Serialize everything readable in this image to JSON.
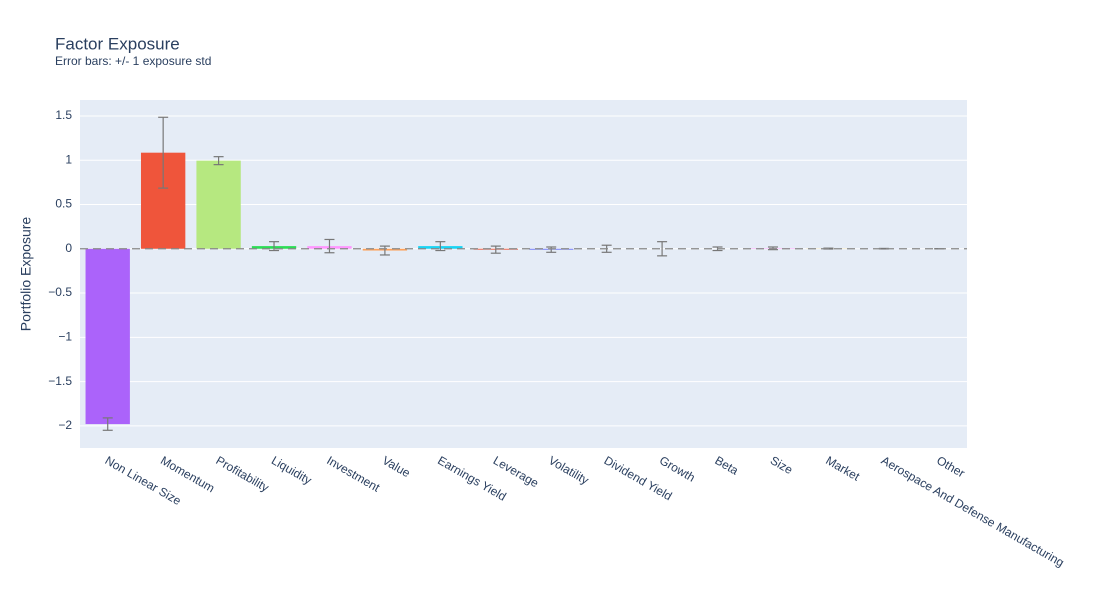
{
  "chart_data": {
    "type": "bar",
    "title": "Factor Exposure",
    "subtitle": "Error bars: +/- 1 exposure std",
    "y_label": "Portfolio Exposure",
    "categories": [
      "Non Linear Size",
      "Momentum",
      "Profitability",
      "Liquidity",
      "Investment",
      "Value",
      "Earnings Yield",
      "Leverage",
      "Volatility",
      "Dividend Yield",
      "Growth",
      "Beta",
      "Size",
      "Market",
      "Aerospace And Defense Manufacturing",
      "Other"
    ],
    "values": [
      -1.98,
      1.085,
      0.995,
      0.03,
      0.03,
      -0.02,
      0.03,
      -0.01,
      -0.01,
      0,
      0,
      0,
      0.005,
      0.002,
      0.001,
      0
    ],
    "errors": [
      0.07,
      0.4,
      0.045,
      0.05,
      0.075,
      0.05,
      0.05,
      0.04,
      0.03,
      0.04,
      0.08,
      0.02,
      0.015,
      0.005,
      0.003,
      0
    ],
    "colors": [
      "#AB63FA",
      "#EF553B",
      "#B6E880",
      "#2CDC55",
      "#FF97FF",
      "#FFA15A",
      "#19D3F3",
      "#EF553B",
      "#636EFA",
      "#00CC96",
      "#FF6692",
      "#B6E880",
      "#FF97FF",
      "#FECB52",
      "#636EFA",
      "#00CC96"
    ],
    "ylim": [
      -2.25,
      1.68
    ],
    "yticks": [
      {
        "value": -2,
        "label": "−2"
      },
      {
        "value": -1.5,
        "label": "−1.5"
      },
      {
        "value": -1,
        "label": "−1"
      },
      {
        "value": -0.5,
        "label": "−0.5"
      },
      0,
      0.5,
      1,
      1.5
    ],
    "grid": true,
    "hline": 0
  }
}
